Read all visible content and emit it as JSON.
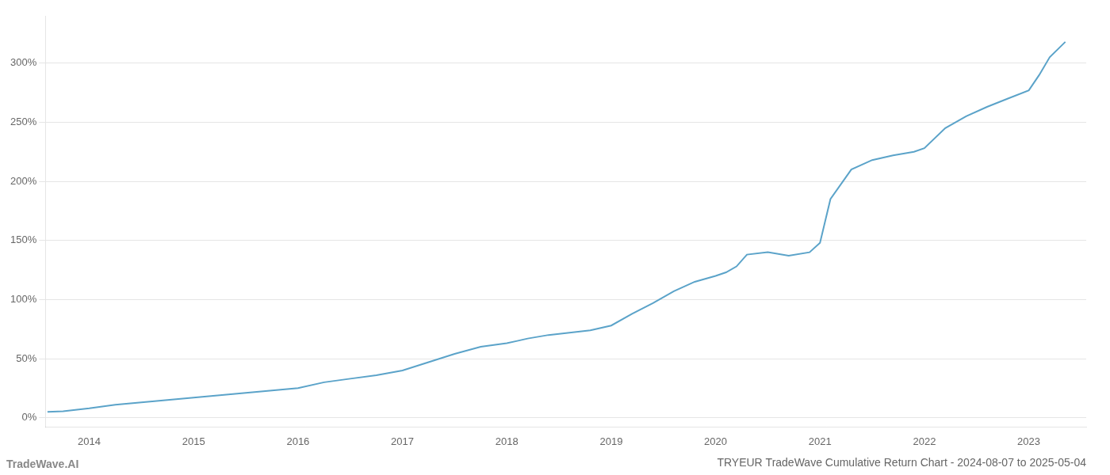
{
  "chart_data": {
    "type": "line",
    "title": "TRYEUR TradeWave Cumulative Return Chart - 2024-08-07 to 2025-05-04",
    "annotations": [
      "TradeWave.AI"
    ],
    "x": [
      2013.6,
      2013.75,
      2014.0,
      2014.25,
      2014.5,
      2014.75,
      2015.0,
      2015.25,
      2015.5,
      2015.75,
      2016.0,
      2016.25,
      2016.5,
      2016.75,
      2017.0,
      2017.25,
      2017.5,
      2017.75,
      2018.0,
      2018.1,
      2018.2,
      2018.4,
      2018.6,
      2018.8,
      2019.0,
      2019.2,
      2019.4,
      2019.6,
      2019.8,
      2020.0,
      2020.1,
      2020.2,
      2020.3,
      2020.5,
      2020.7,
      2020.9,
      2021.0,
      2021.1,
      2021.3,
      2021.5,
      2021.7,
      2021.9,
      2022.0,
      2022.2,
      2022.4,
      2022.6,
      2022.8,
      2023.0,
      2023.1,
      2023.2,
      2023.35
    ],
    "values": [
      5,
      5.5,
      8,
      11,
      13,
      15,
      17,
      19,
      21,
      23,
      25,
      30,
      33,
      36,
      40,
      47,
      54,
      60,
      63,
      65,
      67,
      70,
      72,
      74,
      78,
      88,
      97,
      107,
      115,
      120,
      123,
      128,
      138,
      140,
      137,
      140,
      148,
      185,
      210,
      218,
      222,
      225,
      228,
      245,
      255,
      263,
      270,
      277,
      290,
      305,
      318
    ],
    "color": "#5ba3c9",
    "xlim": [
      2013.58,
      2023.55
    ],
    "xticks": [
      2014,
      2015,
      2016,
      2017,
      2018,
      2019,
      2020,
      2021,
      2022,
      2023
    ],
    "ylim": [
      -8,
      340
    ],
    "yticks": [
      {
        "value": 0,
        "label": "0%"
      },
      {
        "value": 50,
        "label": "50%"
      },
      {
        "value": 100,
        "label": "100%"
      },
      {
        "value": 150,
        "label": "150%"
      },
      {
        "value": 200,
        "label": "200%"
      },
      {
        "value": 250,
        "label": "250%"
      },
      {
        "value": 300,
        "label": "300%"
      }
    ],
    "grid": "y"
  }
}
